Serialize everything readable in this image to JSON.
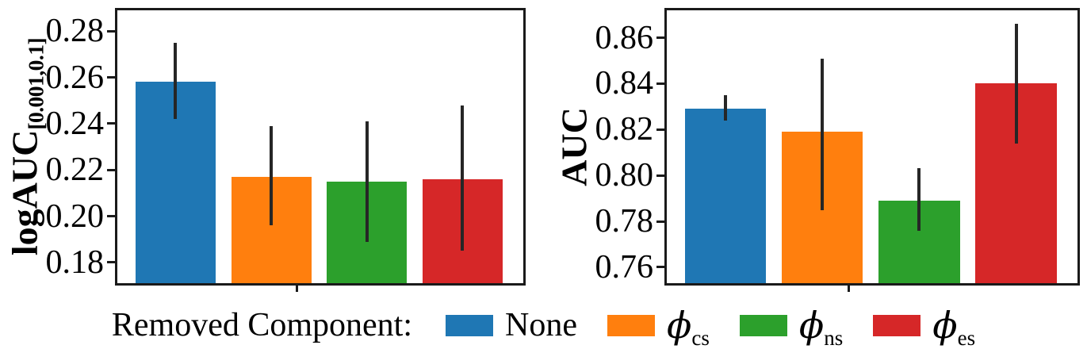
{
  "legend": {
    "title": "Removed Component:",
    "items": [
      {
        "symbol": "None",
        "subscript": "",
        "color": "#1f77b4"
      },
      {
        "symbol": "ϕ",
        "subscript": "cs",
        "color": "#ff7f0e"
      },
      {
        "symbol": "ϕ",
        "subscript": "ns",
        "color": "#2ca02c"
      },
      {
        "symbol": "ϕ",
        "subscript": "es",
        "color": "#d62728"
      }
    ]
  },
  "chart_data": [
    {
      "type": "bar",
      "title": "",
      "xlabel": "",
      "ylabel": "logAUC[0.001,0.1]",
      "ylabel_main": "logAUC",
      "ylabel_sub": "[0.001,0.1]",
      "categories": [
        "None",
        "ϕ_cs",
        "ϕ_ns",
        "ϕ_es"
      ],
      "values": [
        0.258,
        0.217,
        0.215,
        0.216
      ],
      "err_lo": [
        0.242,
        0.196,
        0.189,
        0.185
      ],
      "err_hi": [
        0.275,
        0.239,
        0.241,
        0.248
      ],
      "ytick_labels": [
        "0.18",
        "0.20",
        "0.22",
        "0.24",
        "0.26",
        "0.28"
      ],
      "ylim": [
        0.17,
        0.29
      ],
      "grid": false,
      "colors": [
        "#1f77b4",
        "#ff7f0e",
        "#2ca02c",
        "#d62728"
      ]
    },
    {
      "type": "bar",
      "title": "",
      "xlabel": "",
      "ylabel": "AUC",
      "ylabel_main": "AUC",
      "ylabel_sub": "",
      "categories": [
        "None",
        "ϕ_cs",
        "ϕ_ns",
        "ϕ_es"
      ],
      "values": [
        0.829,
        0.819,
        0.789,
        0.84
      ],
      "err_lo": [
        0.824,
        0.785,
        0.776,
        0.814
      ],
      "err_hi": [
        0.835,
        0.851,
        0.803,
        0.866
      ],
      "ytick_labels": [
        "0.76",
        "0.78",
        "0.80",
        "0.82",
        "0.84",
        "0.86"
      ],
      "ylim": [
        0.752,
        0.873
      ],
      "grid": false,
      "colors": [
        "#1f77b4",
        "#ff7f0e",
        "#2ca02c",
        "#d62728"
      ]
    }
  ]
}
